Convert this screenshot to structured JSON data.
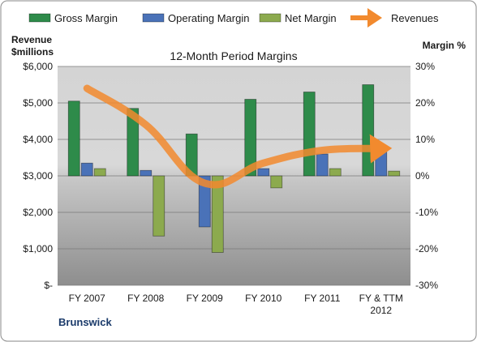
{
  "chart_data": {
    "type": "bar",
    "title": "12-Month Period Margins",
    "company": "Brunswick",
    "left_axis_label": [
      "Revenue",
      "$millions"
    ],
    "right_axis_label": "Margin %",
    "categories": [
      [
        "FY 2007"
      ],
      [
        "FY 2008"
      ],
      [
        "FY 2009"
      ],
      [
        "FY 2010"
      ],
      [
        "FY 2011"
      ],
      [
        "FY & TTM",
        "2012"
      ]
    ],
    "left_ylim": [
      0,
      6000
    ],
    "left_ticks": [
      0,
      1000,
      2000,
      3000,
      4000,
      5000,
      6000
    ],
    "left_tick_labels": [
      "$-",
      "$1,000",
      "$2,000",
      "$3,000",
      "$4,000",
      "$5,000",
      "$6,000"
    ],
    "right_ylim": [
      -30,
      30
    ],
    "right_ticks": [
      -30,
      -20,
      -10,
      0,
      10,
      20,
      30
    ],
    "right_tick_labels": [
      "-30%",
      "-20%",
      "-10%",
      "0%",
      "10%",
      "20%",
      "30%"
    ],
    "series": [
      {
        "name": "Gross Margin",
        "kind": "bar",
        "axis": "right",
        "color": "#2e8b4a",
        "values": [
          20.5,
          18.5,
          11.5,
          21,
          23,
          25
        ]
      },
      {
        "name": "Operating Margin",
        "kind": "bar",
        "axis": "right",
        "color": "#4a72b8",
        "values": [
          3.5,
          1.5,
          -14,
          2,
          6,
          8
        ]
      },
      {
        "name": "Net Margin",
        "kind": "bar",
        "axis": "right",
        "color": "#8caa4e",
        "values": [
          2,
          -16.5,
          -21,
          -3.3,
          2,
          1.3
        ]
      },
      {
        "name": "Revenues",
        "kind": "line",
        "axis": "left",
        "color": "#f28a2e",
        "values": [
          5400,
          4400,
          2800,
          3350,
          3700,
          3750
        ]
      }
    ],
    "grid": true,
    "legend": "top"
  }
}
